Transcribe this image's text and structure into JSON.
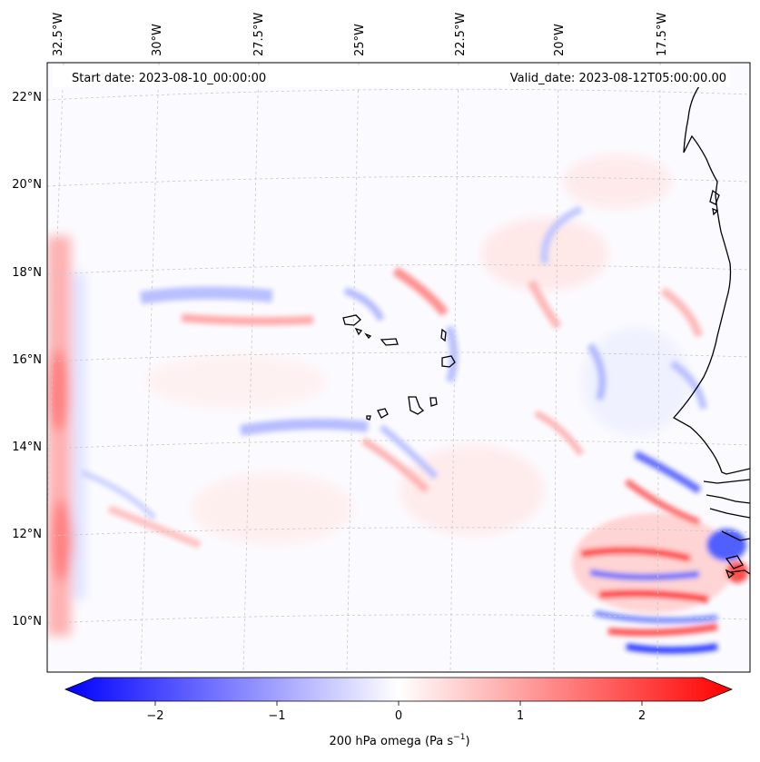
{
  "header": {
    "start_label": "Start date: 2023-08-10_00:00:00",
    "valid_label": "Valid_date: 2023-08-12T05:00:00.00"
  },
  "map": {
    "lon_ticks": [
      "32.5°W",
      "30°W",
      "27.5°W",
      "25°W",
      "22.5°W",
      "20°W",
      "17.5°W"
    ],
    "lat_ticks": [
      "22°N",
      "20°N",
      "18°N",
      "16°N",
      "14°N",
      "12°N",
      "10°N"
    ],
    "colors": {
      "negative": "#0000ff",
      "neutral": "#ffffff",
      "positive": "#ff0000",
      "coastline": "#000000"
    }
  },
  "colorbar": {
    "ticks": [
      "−2",
      "−1",
      "0",
      "1",
      "2"
    ],
    "tick_values": [
      -2,
      -1,
      0,
      1,
      2
    ],
    "range": [
      -2.75,
      2.75
    ],
    "label_main": "200 hPa omega (Pa s",
    "label_sup": "−1",
    "label_tail": ")"
  }
}
